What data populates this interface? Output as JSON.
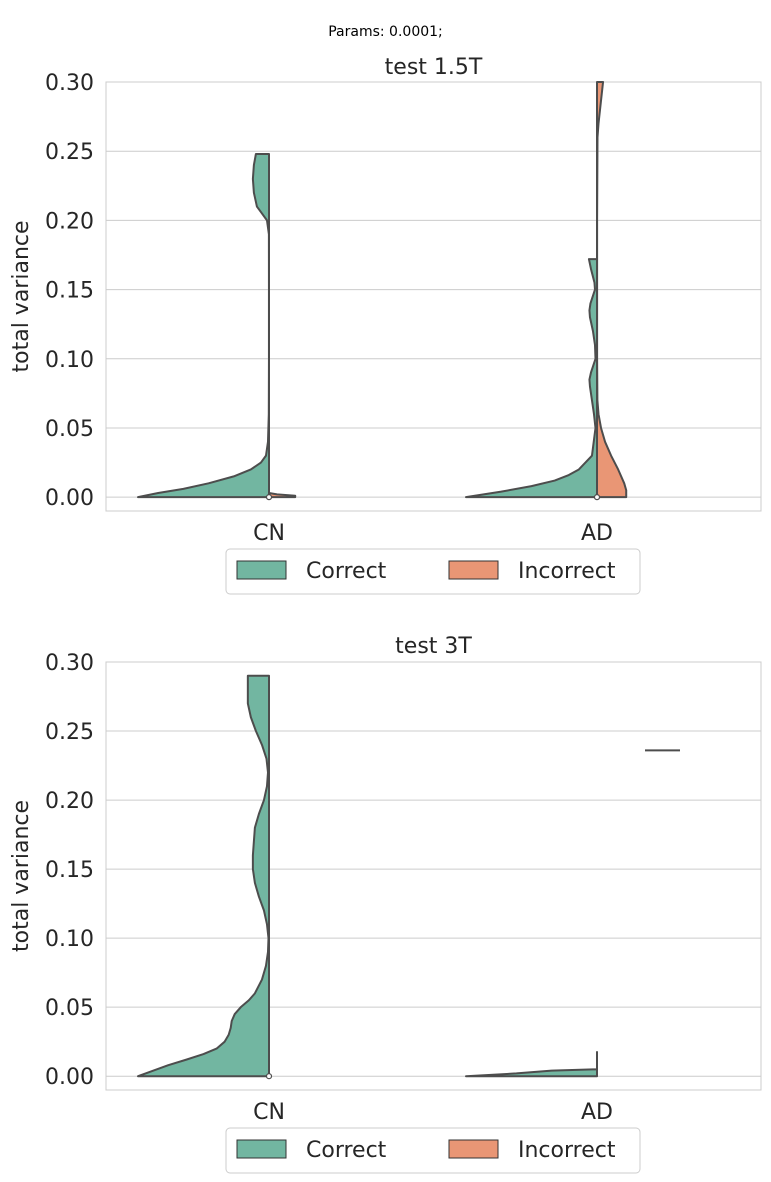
{
  "suptitle": "Params: 0.0001;",
  "colors": {
    "correct": "#72b6a1",
    "incorrect": "#e99675",
    "edge": "#4d4d4d",
    "grid": "#cccccc"
  },
  "legend": [
    {
      "label": "Correct",
      "color": "#72b6a1"
    },
    {
      "label": "Incorrect",
      "color": "#e99675"
    }
  ],
  "chart_data": [
    {
      "type": "violin",
      "title": "test 1.5T",
      "ylabel": "total variance",
      "ylim": [
        -0.01,
        0.3
      ],
      "yticks": [
        "0.00",
        "0.05",
        "0.10",
        "0.15",
        "0.20",
        "0.25",
        "0.30"
      ],
      "categories": [
        "CN",
        "AD"
      ],
      "grid": "y",
      "legend_placement": "below",
      "split": true,
      "groups": [
        {
          "category": "CN",
          "correct": {
            "profile": [
              [
                0.0,
                130
              ],
              [
                0.003,
                110
              ],
              [
                0.006,
                85
              ],
              [
                0.01,
                60
              ],
              [
                0.015,
                35
              ],
              [
                0.02,
                18
              ],
              [
                0.025,
                8
              ],
              [
                0.03,
                3
              ],
              [
                0.04,
                1
              ],
              [
                0.06,
                0.2
              ],
              [
                0.1,
                0.05
              ],
              [
                0.15,
                0.05
              ],
              [
                0.19,
                0.1
              ],
              [
                0.2,
                2
              ],
              [
                0.205,
                7
              ],
              [
                0.21,
                12
              ],
              [
                0.22,
                15
              ],
              [
                0.23,
                16
              ],
              [
                0.24,
                15
              ],
              [
                0.248,
                13
              ]
            ]
          },
          "incorrect": {
            "profile": [
              [
                0.0,
                26
              ],
              [
                0.001,
                26
              ],
              [
                0.002,
                8
              ],
              [
                0.003,
                0
              ]
            ]
          },
          "median": 0.0
        },
        {
          "category": "AD",
          "correct": {
            "profile": [
              [
                0.0,
                130
              ],
              [
                0.004,
                95
              ],
              [
                0.008,
                65
              ],
              [
                0.012,
                42
              ],
              [
                0.016,
                28
              ],
              [
                0.02,
                18
              ],
              [
                0.03,
                5
              ],
              [
                0.05,
                1.5
              ],
              [
                0.06,
                3
              ],
              [
                0.07,
                5
              ],
              [
                0.08,
                7
              ],
              [
                0.085,
                7.5
              ],
              [
                0.09,
                6
              ],
              [
                0.1,
                1.5
              ],
              [
                0.11,
                2
              ],
              [
                0.12,
                4
              ],
              [
                0.13,
                7
              ],
              [
                0.135,
                7.5
              ],
              [
                0.14,
                6.5
              ],
              [
                0.15,
                2
              ],
              [
                0.155,
                2.5
              ],
              [
                0.165,
                6
              ],
              [
                0.172,
                8
              ]
            ]
          },
          "incorrect": {
            "profile": [
              [
                0.0,
                29
              ],
              [
                0.005,
                29
              ],
              [
                0.01,
                27
              ],
              [
                0.02,
                21
              ],
              [
                0.03,
                14
              ],
              [
                0.04,
                8
              ],
              [
                0.05,
                4
              ],
              [
                0.06,
                1.5
              ],
              [
                0.07,
                0.4
              ],
              [
                0.1,
                0.1
              ],
              [
                0.2,
                0.1
              ],
              [
                0.26,
                0.5
              ],
              [
                0.27,
                1.5
              ],
              [
                0.28,
                3
              ],
              [
                0.3,
                6
              ]
            ]
          },
          "median": 0.0
        }
      ]
    },
    {
      "type": "violin",
      "title": "test 3T",
      "ylabel": "total variance",
      "ylim": [
        -0.01,
        0.3
      ],
      "yticks": [
        "0.00",
        "0.05",
        "0.10",
        "0.15",
        "0.20",
        "0.25",
        "0.30"
      ],
      "categories": [
        "CN",
        "AD"
      ],
      "grid": "y",
      "legend_placement": "below",
      "split": true,
      "groups": [
        {
          "category": "CN",
          "correct": {
            "profile": [
              [
                0.0,
                130
              ],
              [
                0.004,
                115
              ],
              [
                0.008,
                100
              ],
              [
                0.012,
                82
              ],
              [
                0.016,
                65
              ],
              [
                0.02,
                52
              ],
              [
                0.025,
                44
              ],
              [
                0.03,
                40
              ],
              [
                0.035,
                38
              ],
              [
                0.04,
                37
              ],
              [
                0.045,
                34
              ],
              [
                0.05,
                28
              ],
              [
                0.055,
                20
              ],
              [
                0.06,
                14
              ],
              [
                0.07,
                7
              ],
              [
                0.08,
                3
              ],
              [
                0.09,
                1
              ],
              [
                0.1,
                0.5
              ],
              [
                0.11,
                2
              ],
              [
                0.12,
                5
              ],
              [
                0.13,
                10
              ],
              [
                0.14,
                14
              ],
              [
                0.15,
                16
              ],
              [
                0.16,
                16
              ],
              [
                0.17,
                15
              ],
              [
                0.18,
                14
              ],
              [
                0.19,
                10
              ],
              [
                0.2,
                5
              ],
              [
                0.21,
                2
              ],
              [
                0.22,
                1
              ],
              [
                0.23,
                2.5
              ],
              [
                0.24,
                7
              ],
              [
                0.25,
                13
              ],
              [
                0.26,
                18
              ],
              [
                0.27,
                21
              ],
              [
                0.28,
                21
              ],
              [
                0.29,
                21
              ]
            ]
          },
          "median": 0.0
        },
        {
          "category": "AD",
          "correct": {
            "profile": [
              [
                0.0,
                130
              ],
              [
                0.002,
                80
              ],
              [
                0.004,
                45
              ],
              [
                0.005,
                0
              ],
              [
                0.013,
                0
              ],
              [
                0.014,
                0
              ],
              [
                0.015,
                0
              ],
              [
                0.0175,
                0
              ]
            ],
            "band": [
              0.004,
              0.0175
            ]
          },
          "incorrect_line": 0.236,
          "median": null
        }
      ]
    }
  ]
}
